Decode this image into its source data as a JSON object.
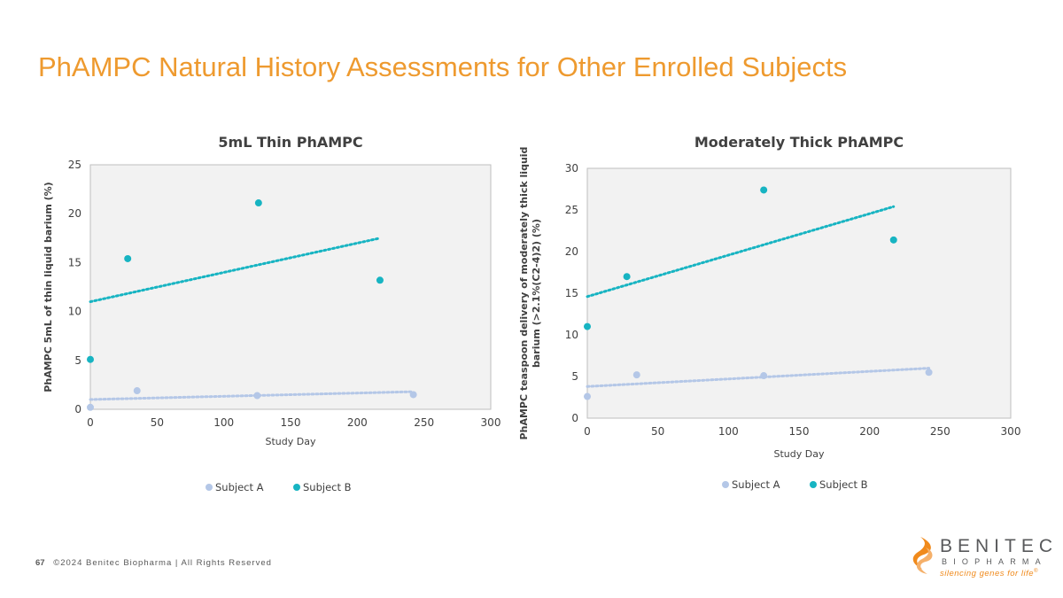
{
  "slide": {
    "title": "PhAMPC Natural History Assessments for Other Enrolled Subjects",
    "page_number": "67",
    "copyright": "©2024 Benitec Biopharma | All Rights Reserved",
    "brand": {
      "name": "BENITEC",
      "sub": "BIOPHARMA",
      "tagline": "silencing genes for life",
      "trademark": "®",
      "colors": {
        "orange": "#F08A1C",
        "gray": "#58595B"
      }
    }
  },
  "colors": {
    "title": "#EE9A2F",
    "subject_a": "#B4C7E7",
    "subject_b": "#17B4C2",
    "plot_bg": "#F2F2F2",
    "plot_border": "#BFBFBF"
  },
  "chart_data": [
    {
      "type": "scatter",
      "title": "5mL Thin PhAMPC",
      "xlabel": "Study Day",
      "ylabel": "PhAMPC 5mL of thin liquid barium (%)",
      "xlim": [
        0,
        300
      ],
      "ylim": [
        0,
        25
      ],
      "xticks": [
        0,
        50,
        100,
        150,
        200,
        250,
        300
      ],
      "yticks": [
        0,
        5,
        10,
        15,
        20,
        25
      ],
      "legend_position": "bottom",
      "series": [
        {
          "name": "Subject A",
          "color": "#B4C7E7",
          "points": [
            [
              0,
              0.2
            ],
            [
              35,
              1.9
            ],
            [
              125,
              1.4
            ],
            [
              242,
              1.5
            ]
          ],
          "trendline": {
            "type": "linear",
            "x": [
              0,
              242
            ],
            "y": [
              1.0,
              1.8
            ]
          }
        },
        {
          "name": "Subject B",
          "color": "#17B4C2",
          "points": [
            [
              0,
              5.1
            ],
            [
              28,
              15.4
            ],
            [
              126,
              21.1
            ],
            [
              217,
              13.2
            ]
          ],
          "trendline": {
            "type": "linear",
            "x": [
              0,
              217
            ],
            "y": [
              11.0,
              17.5
            ]
          }
        }
      ]
    },
    {
      "type": "scatter",
      "title": "Moderately Thick PhAMPC",
      "xlabel": "Study Day",
      "ylabel_lines": [
        "PhAMPC teaspoon delivery of moderately thick liquid",
        "barium (>2.1%(C2-4)2) (%)"
      ],
      "xlim": [
        0,
        300
      ],
      "ylim": [
        0,
        30
      ],
      "xticks": [
        0,
        50,
        100,
        150,
        200,
        250,
        300
      ],
      "yticks": [
        0,
        5,
        10,
        15,
        20,
        25,
        30
      ],
      "legend_position": "bottom",
      "series": [
        {
          "name": "Subject A",
          "color": "#B4C7E7",
          "points": [
            [
              0,
              2.6
            ],
            [
              35,
              5.2
            ],
            [
              125,
              5.1
            ],
            [
              242,
              5.5
            ]
          ],
          "trendline": {
            "type": "linear",
            "x": [
              0,
              242
            ],
            "y": [
              3.8,
              6.0
            ]
          }
        },
        {
          "name": "Subject B",
          "color": "#17B4C2",
          "points": [
            [
              0,
              11.0
            ],
            [
              28,
              17.0
            ],
            [
              125,
              27.4
            ],
            [
              217,
              21.4
            ]
          ],
          "trendline": {
            "type": "linear",
            "x": [
              0,
              217
            ],
            "y": [
              14.6,
              25.4
            ]
          }
        }
      ]
    }
  ]
}
